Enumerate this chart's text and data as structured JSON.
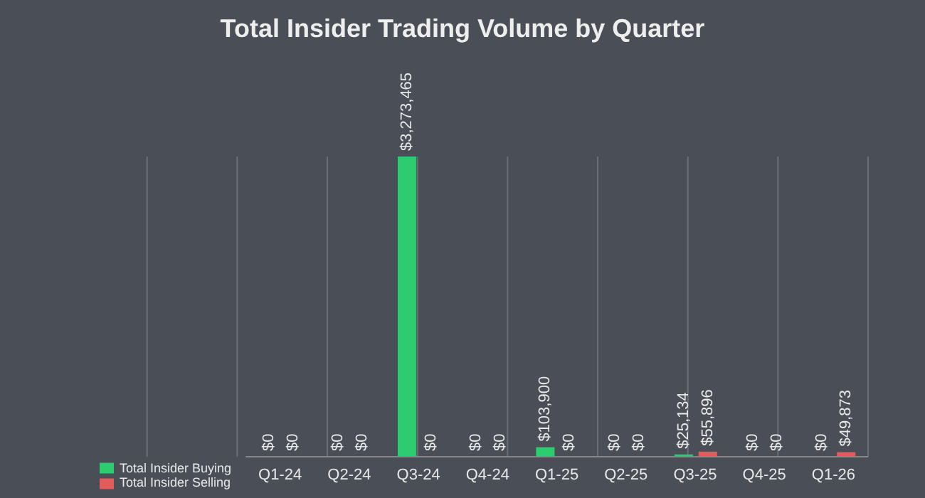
{
  "chart_data": {
    "type": "bar",
    "title": "Total Insider Trading Volume by Quarter",
    "categories": [
      "Q1-24",
      "Q2-24",
      "Q3-24",
      "Q4-24",
      "Q1-25",
      "Q2-25",
      "Q3-25",
      "Q4-25",
      "Q1-26"
    ],
    "series": [
      {
        "name": "Total Insider Buying",
        "color": "#2ecc71",
        "values": [
          0,
          0,
          3273465,
          0,
          103900,
          0,
          25134,
          0,
          0
        ],
        "value_labels": [
          "$0",
          "$0",
          "$3,273,465",
          "$0",
          "$103,900",
          "$0",
          "$25,134",
          "$0",
          "$0"
        ]
      },
      {
        "name": "Total Insider Selling",
        "color": "#e25c5c",
        "values": [
          0,
          0,
          0,
          0,
          0,
          0,
          55896,
          0,
          49873
        ],
        "value_labels": [
          "$0",
          "$0",
          "$0",
          "$0",
          "$0",
          "$0",
          "$55,896",
          "$0",
          "$49,873"
        ]
      }
    ],
    "grid": "x",
    "legend": "bottom left"
  }
}
